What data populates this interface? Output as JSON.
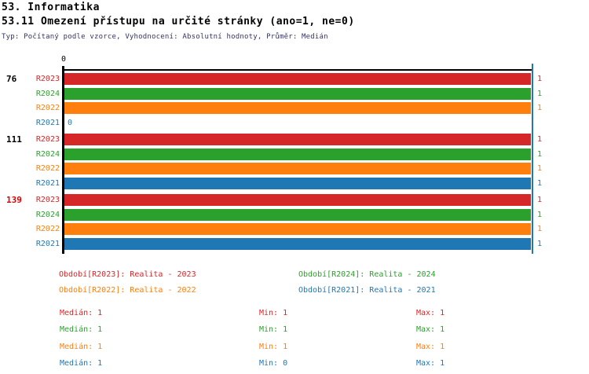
{
  "header": {
    "title1": "53. Informatika",
    "title2": "53.11 Omezení přístupu na určité stránky (ano=1, ne=0)",
    "meta": "Typ: Počítaný podle vzorce, Vyhodnocení: Absolutní hodnoty, Průměr: Medián"
  },
  "colors": {
    "series": {
      "R2023": "#d62728",
      "R2024": "#2ca02c",
      "R2022": "#ff7f0e",
      "R2021": "#1f77b4"
    },
    "axis": "#000000",
    "median_line": "#1f77b4",
    "group_label_default": "#000000",
    "group_label_highlight": "#dd0000"
  },
  "chart_data": {
    "type": "bar",
    "orientation": "horizontal",
    "title": "",
    "xlabel": "",
    "ylabel": "",
    "xlim": [
      0,
      1
    ],
    "axis_zero_label": "0",
    "median_line_value": 1,
    "grid": false,
    "series_order": [
      "R2023",
      "R2024",
      "R2022",
      "R2021"
    ],
    "groups": [
      {
        "label": "76",
        "highlighted": false,
        "bars": [
          {
            "series": "R2023",
            "value": 1,
            "value_label": "1"
          },
          {
            "series": "R2024",
            "value": 1,
            "value_label": "1"
          },
          {
            "series": "R2022",
            "value": 1,
            "value_label": "1"
          },
          {
            "series": "R2021",
            "value": 0,
            "value_label": "0"
          }
        ]
      },
      {
        "label": "111",
        "highlighted": false,
        "bars": [
          {
            "series": "R2023",
            "value": 1,
            "value_label": "1"
          },
          {
            "series": "R2024",
            "value": 1,
            "value_label": "1"
          },
          {
            "series": "R2022",
            "value": 1,
            "value_label": "1"
          },
          {
            "series": "R2021",
            "value": 1,
            "value_label": "1"
          }
        ]
      },
      {
        "label": "139",
        "highlighted": true,
        "bars": [
          {
            "series": "R2023",
            "value": 1,
            "value_label": "1"
          },
          {
            "series": "R2024",
            "value": 1,
            "value_label": "1"
          },
          {
            "series": "R2022",
            "value": 1,
            "value_label": "1"
          },
          {
            "series": "R2021",
            "value": 1,
            "value_label": "1"
          }
        ]
      }
    ]
  },
  "legend": {
    "items": [
      {
        "series": "R2023",
        "label": "Období[R2023]: Realita - 2023"
      },
      {
        "series": "R2024",
        "label": "Období[R2024]: Realita - 2024"
      },
      {
        "series": "R2022",
        "label": "Období[R2022]: Realita - 2022"
      },
      {
        "series": "R2021",
        "label": "Období[R2021]: Realita - 2021"
      }
    ]
  },
  "stats": {
    "labels": {
      "median": "Medián:",
      "min": "Min:",
      "max": "Max:"
    },
    "rows": [
      {
        "series": "R2023",
        "median": "1",
        "min": "1",
        "max": "1"
      },
      {
        "series": "R2024",
        "median": "1",
        "min": "1",
        "max": "1"
      },
      {
        "series": "R2022",
        "median": "1",
        "min": "1",
        "max": "1"
      },
      {
        "series": "R2021",
        "median": "1",
        "min": "0",
        "max": "1"
      }
    ]
  }
}
